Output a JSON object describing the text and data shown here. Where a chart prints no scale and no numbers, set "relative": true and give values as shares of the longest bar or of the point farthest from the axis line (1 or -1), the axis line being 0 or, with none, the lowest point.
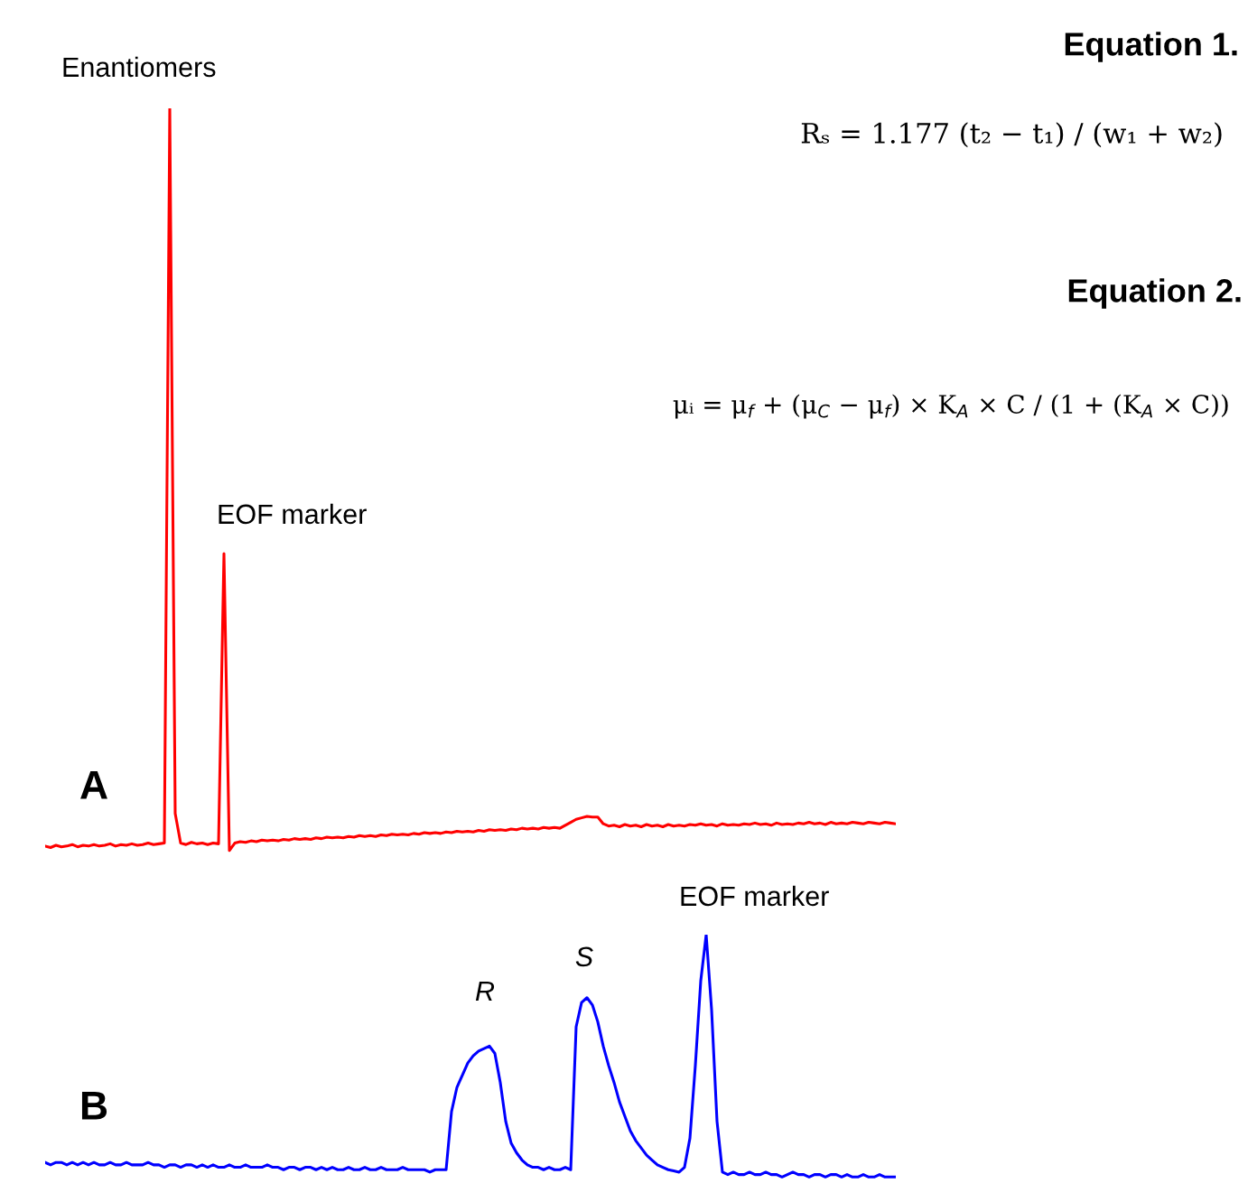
{
  "chart_data": [
    {
      "type": "line",
      "title": "A",
      "relative": true,
      "categories": [
        null,
        null,
        null,
        null,
        null,
        null,
        null,
        null,
        null,
        null,
        null,
        null,
        null,
        null,
        null,
        null,
        null,
        null,
        null,
        null,
        null,
        null,
        null,
        null,
        null,
        null,
        null,
        null,
        null,
        null,
        null,
        null,
        null,
        null,
        null,
        null,
        null,
        null,
        null,
        null,
        null,
        null,
        null,
        null,
        null,
        null,
        null,
        null,
        null,
        null,
        null,
        null,
        null,
        null,
        null,
        null,
        null,
        null,
        null,
        null,
        null,
        null,
        null,
        null,
        null,
        null,
        null,
        null,
        null,
        null,
        null,
        null,
        null,
        null,
        null,
        null,
        null,
        null,
        null,
        null,
        null,
        null,
        null,
        null,
        null,
        null,
        null,
        null,
        null,
        null,
        null,
        null,
        null,
        null,
        null,
        null,
        null,
        null,
        null,
        null,
        null,
        null,
        null,
        null,
        null,
        null,
        null,
        null,
        null,
        null,
        null,
        null,
        null,
        null,
        null,
        null,
        null,
        null,
        null,
        null,
        null,
        null,
        null,
        null,
        null,
        null,
        null,
        null,
        null,
        null,
        null,
        null,
        null,
        null,
        null,
        null,
        null,
        null,
        null,
        null,
        null,
        null,
        null,
        null,
        null,
        null,
        null,
        null,
        null,
        null,
        null,
        null,
        null,
        null,
        null,
        null,
        null,
        null
      ],
      "series": [
        {
          "color": "#ff0000",
          "values": [
            0.006,
            0.004,
            0.007,
            0.005,
            0.006,
            0.008,
            0.005,
            0.007,
            0.006,
            0.008,
            0.006,
            0.007,
            0.009,
            0.006,
            0.008,
            0.007,
            0.009,
            0.007,
            0.008,
            0.01,
            0.008,
            0.009,
            0.01,
            1.0,
            0.05,
            0.01,
            0.008,
            0.011,
            0.009,
            0.01,
            0.008,
            0.01,
            0.009,
            0.4,
            0,
            0.01,
            0.012,
            0.011,
            0.013,
            0.012,
            0.014,
            0.013,
            0.014,
            0.013,
            0.015,
            0.014,
            0.016,
            0.015,
            0.016,
            0.015,
            0.017,
            0.016,
            0.018,
            0.017,
            0.018,
            0.017,
            0.019,
            0.018,
            0.02,
            0.019,
            0.02,
            0.019,
            0.021,
            0.02,
            0.022,
            0.021,
            0.022,
            0.021,
            0.023,
            0.022,
            0.024,
            0.023,
            0.024,
            0.023,
            0.025,
            0.024,
            0.026,
            0.025,
            0.026,
            0.025,
            0.027,
            0.026,
            0.028,
            0.027,
            0.028,
            0.027,
            0.029,
            0.028,
            0.03,
            0.029,
            0.03,
            0.029,
            0.031,
            0.03,
            0.031,
            0.03,
            0.034,
            0.038,
            0.042,
            0.044,
            0.046,
            0.045,
            0.045,
            0.036,
            0.033,
            0.034,
            0.032,
            0.035,
            0.033,
            0.034,
            0.032,
            0.035,
            0.033,
            0.034,
            0.032,
            0.035,
            0.033,
            0.034,
            0.033,
            0.035,
            0.034,
            0.036,
            0.034,
            0.035,
            0.033,
            0.036,
            0.034,
            0.035,
            0.034,
            0.036,
            0.035,
            0.037,
            0.035,
            0.036,
            0.034,
            0.037,
            0.035,
            0.036,
            0.035,
            0.037,
            0.036,
            0.038,
            0.036,
            0.037,
            0.035,
            0.038,
            0.036,
            0.037,
            0.036,
            0.038,
            0.037,
            0.036,
            0.038,
            0.037,
            0.036,
            0.038,
            0.037,
            0.036
          ]
        }
      ],
      "annotations": [
        "Enantiomers",
        "EOF marker",
        "Equation 1.",
        "Rₛ = 1.177 (t₂ − t₁) / (w₁ + w₂)",
        "Equation 2.",
        "μᵢ = μ$_{f}$ + (μ$_{C}$ − μ$_{f}$) × K$_{A}$ × C / (1 + (K$_{A}$ × C))"
      ]
    },
    {
      "type": "line",
      "title": "B",
      "relative": true,
      "categories": [
        null,
        null,
        null,
        null,
        null,
        null,
        null,
        null,
        null,
        null,
        null,
        null,
        null,
        null,
        null,
        null,
        null,
        null,
        null,
        null,
        null,
        null,
        null,
        null,
        null,
        null,
        null,
        null,
        null,
        null,
        null,
        null,
        null,
        null,
        null,
        null,
        null,
        null,
        null,
        null,
        null,
        null,
        null,
        null,
        null,
        null,
        null,
        null,
        null,
        null,
        null,
        null,
        null,
        null,
        null,
        null,
        null,
        null,
        null,
        null,
        null,
        null,
        null,
        null,
        null,
        null,
        null,
        null,
        null,
        null,
        null,
        null,
        null,
        null,
        null,
        null,
        null,
        null,
        null,
        null,
        null,
        null,
        null,
        null,
        null,
        null,
        null,
        null,
        null,
        null,
        null,
        null,
        null,
        null,
        null,
        null,
        null,
        null,
        null,
        null,
        null,
        null,
        null,
        null,
        null,
        null,
        null,
        null,
        null,
        null,
        null,
        null,
        null,
        null,
        null,
        null,
        null,
        null,
        null,
        null,
        null,
        null,
        null,
        null,
        null,
        null,
        null,
        null,
        null,
        null,
        null,
        null,
        null,
        null,
        null,
        null,
        null,
        null,
        null,
        null,
        null,
        null,
        null,
        null,
        null,
        null,
        null,
        null,
        null,
        null,
        null,
        null,
        null,
        null,
        null,
        null,
        null,
        null
      ],
      "series": [
        {
          "color": "#0000ff",
          "values": [
            0.06,
            0.05,
            0.06,
            0.06,
            0.05,
            0.06,
            0.05,
            0.06,
            0.05,
            0.06,
            0.05,
            0.05,
            0.06,
            0.05,
            0.05,
            0.06,
            0.05,
            0.05,
            0.05,
            0.06,
            0.05,
            0.05,
            0.04,
            0.05,
            0.05,
            0.04,
            0.05,
            0.05,
            0.04,
            0.05,
            0.04,
            0.05,
            0.04,
            0.04,
            0.05,
            0.04,
            0.04,
            0.05,
            0.04,
            0.04,
            0.04,
            0.05,
            0.04,
            0.04,
            0.03,
            0.04,
            0.04,
            0.03,
            0.04,
            0.04,
            0.03,
            0.04,
            0.03,
            0.04,
            0.03,
            0.03,
            0.04,
            0.03,
            0.03,
            0.04,
            0.03,
            0.03,
            0.04,
            0.03,
            0.03,
            0.03,
            0.04,
            0.03,
            0.03,
            0.03,
            0.03,
            0.02,
            0.03,
            0.03,
            0.03,
            0.27,
            0.37,
            0.42,
            0.47,
            0.5,
            0.52,
            0.53,
            0.54,
            0.51,
            0.39,
            0.23,
            0.14,
            0.1,
            0.07,
            0.05,
            0.04,
            0.04,
            0.03,
            0.04,
            0.03,
            0.03,
            0.04,
            0.03,
            0.62,
            0.72,
            0.74,
            0.71,
            0.64,
            0.54,
            0.46,
            0.39,
            0.31,
            0.25,
            0.19,
            0.15,
            0.12,
            0.09,
            0.07,
            0.05,
            0.04,
            0.03,
            0.025,
            0.02,
            0.04,
            0.16,
            0.46,
            0.81,
            1.0,
            0.69,
            0.23,
            0.02,
            0.01,
            0.02,
            0.01,
            0.01,
            0.02,
            0.01,
            0.01,
            0.02,
            0.01,
            0.01,
            0,
            0.01,
            0.02,
            0.01,
            0.01,
            0,
            0.01,
            0.01,
            0,
            0.01,
            0.01,
            0,
            0.01,
            0,
            0,
            0.01,
            0,
            0,
            0.01,
            0,
            0,
            0
          ]
        }
      ],
      "annotations": [
        "R",
        "S",
        "EOF marker"
      ]
    }
  ]
}
